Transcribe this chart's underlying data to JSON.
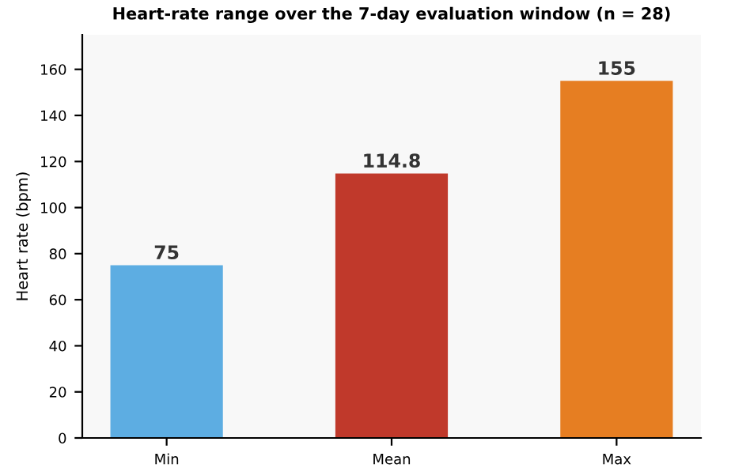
{
  "chart_data": {
    "type": "bar",
    "title": "Heart-rate range over the 7-day evaluation window (n = 28)",
    "ylabel": "Heart rate (bpm)",
    "categories": [
      "Min",
      "Mean",
      "Max"
    ],
    "values": [
      75,
      114.8,
      155
    ],
    "colors": [
      "#5dade2",
      "#c0392b",
      "#e67e22"
    ],
    "ylim": [
      0,
      175
    ],
    "yticks": [
      0,
      20,
      40,
      60,
      80,
      100,
      120,
      140,
      160
    ],
    "data_labels": true,
    "grid": false,
    "legend": false
  }
}
